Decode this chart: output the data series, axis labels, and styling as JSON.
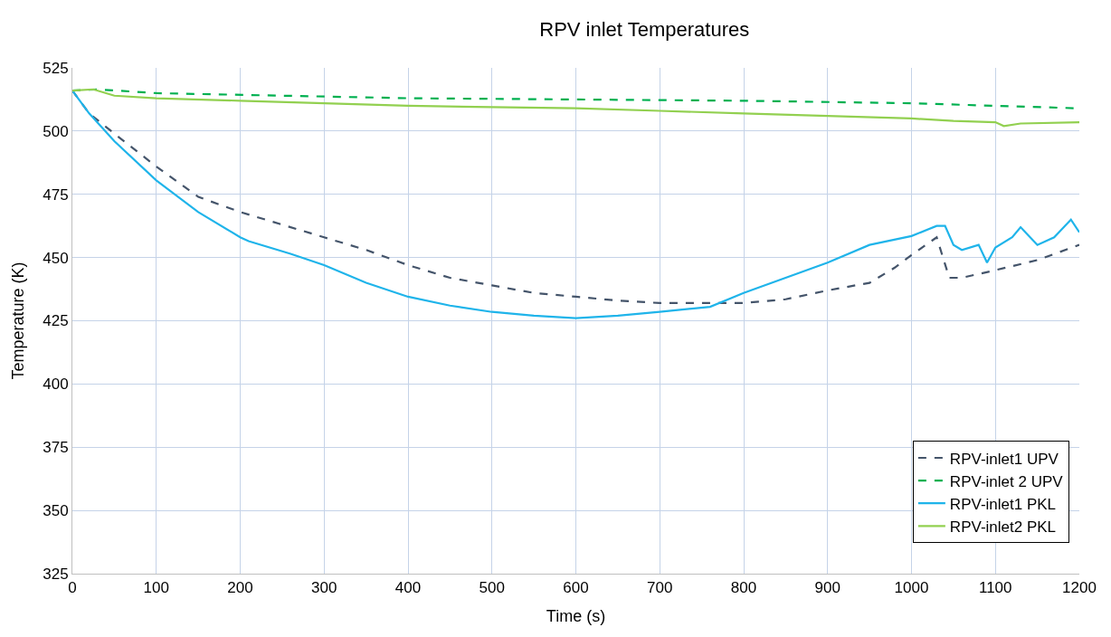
{
  "chart_data": {
    "type": "line",
    "title": "RPV inlet Temperatures",
    "xlabel": "Time (s)",
    "ylabel": "Temperature (K)",
    "xlim": [
      0,
      1200
    ],
    "xticks": [
      0,
      100,
      200,
      300,
      400,
      500,
      600,
      700,
      800,
      900,
      1000,
      1100,
      1200
    ],
    "ylim": [
      325,
      525
    ],
    "yticks": [
      325,
      350,
      375,
      400,
      425,
      450,
      475,
      500,
      525
    ],
    "grid": true,
    "legend": "bottom right",
    "marker": "none",
    "series": [
      {
        "name": "RPV-inlet1 UPV",
        "color": "#44546a",
        "line_style": "dashed",
        "x": [
          0,
          20,
          50,
          100,
          150,
          200,
          250,
          300,
          350,
          400,
          450,
          500,
          550,
          600,
          650,
          700,
          750,
          800,
          850,
          900,
          950,
          980,
          1000,
          1030,
          1045,
          1060,
          1100,
          1150,
          1200
        ],
        "values": [
          516,
          507,
          499,
          486,
          474,
          468,
          463,
          458,
          453,
          447,
          442,
          439,
          436,
          434.5,
          433,
          432,
          432,
          432,
          433.5,
          437,
          440,
          446,
          451,
          458,
          442,
          442,
          445,
          449,
          455
        ]
      },
      {
        "name": "RPV-inlet 2 UPV",
        "color": "#00b050",
        "line_style": "dashed",
        "x": [
          0,
          30,
          100,
          400,
          800,
          1000,
          1200
        ],
        "values": [
          516,
          516.5,
          515,
          513,
          512,
          511,
          509
        ]
      },
      {
        "name": "RPV-inlet1 PKL",
        "color": "#1fb4ea",
        "line_style": "solid",
        "x": [
          0,
          20,
          50,
          100,
          150,
          200,
          210,
          260,
          300,
          350,
          400,
          450,
          500,
          550,
          600,
          650,
          700,
          760,
          800,
          850,
          900,
          950,
          1000,
          1030,
          1040,
          1050,
          1060,
          1080,
          1090,
          1100,
          1120,
          1130,
          1150,
          1170,
          1190,
          1200
        ],
        "values": [
          516,
          507,
          496,
          480.5,
          468,
          458,
          456.5,
          451.5,
          447,
          440,
          434.5,
          431,
          428.5,
          427,
          426,
          427,
          428.5,
          430.5,
          436,
          442,
          448,
          455,
          458.5,
          462.5,
          462.5,
          455,
          453,
          455,
          448,
          454,
          458,
          462,
          455,
          458,
          465,
          460
        ]
      },
      {
        "name": "RPV-inlet2 PKL",
        "color": "#92d050",
        "line_style": "solid",
        "x": [
          0,
          25,
          50,
          100,
          200,
          300,
          400,
          500,
          600,
          700,
          800,
          900,
          1000,
          1050,
          1100,
          1110,
          1130,
          1200
        ],
        "values": [
          516,
          516.5,
          514,
          513,
          512,
          511,
          510,
          509.5,
          509,
          508,
          507,
          506,
          505,
          504,
          503.5,
          502,
          503,
          503.5
        ]
      }
    ]
  }
}
